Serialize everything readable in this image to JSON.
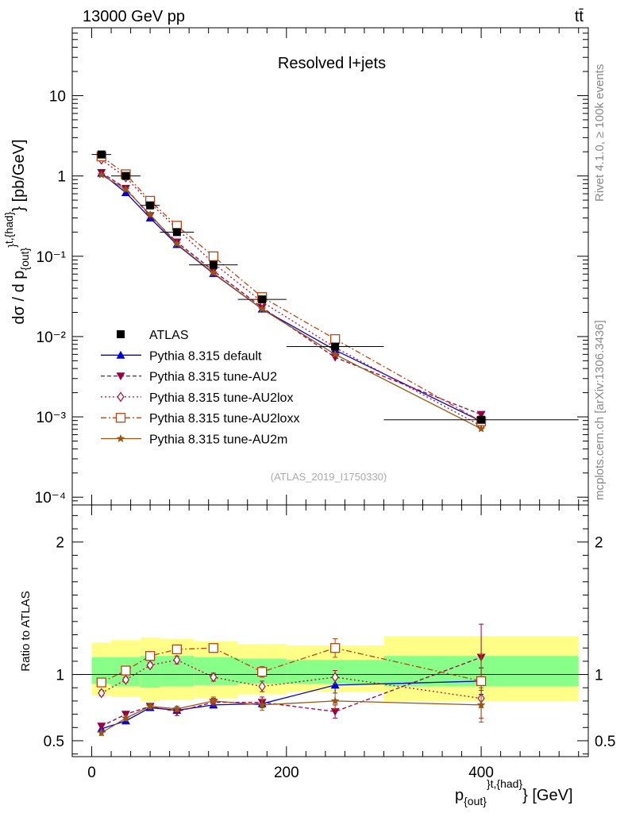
{
  "header": {
    "energy_label": "13000 GeV pp",
    "process_label": "tt̄"
  },
  "side_labels": {
    "rivet": "Rivet 4.1.0, ≥ 100k events",
    "mcplots": "mcplots.cern.ch [arXiv:1306.3436]"
  },
  "chart_data": [
    {
      "type": "scatter",
      "panel": "main",
      "title": "Resolved l+jets",
      "watermark": "(ATLAS_2019_I1750330)",
      "ylabel": "dσ / d p_{out}^{t,{had}} [pb/GeV]",
      "xlabel": "p_{out}^{t,{had}} [GeV]",
      "yscale": "log",
      "xlim": [
        -20,
        510
      ],
      "ylim": [
        8e-05,
        70
      ],
      "ytick_labels": [
        "10⁻⁴",
        "10⁻³",
        "10⁻²",
        "10⁻¹",
        "1",
        "10"
      ],
      "x": [
        10,
        35,
        60,
        87.5,
        125,
        175,
        250,
        400
      ],
      "data": {
        "name": "ATLAS",
        "x": [
          10,
          35,
          60,
          87.5,
          125,
          175,
          250,
          400
        ],
        "y": [
          1.85,
          1.0,
          0.43,
          0.2,
          0.078,
          0.029,
          0.0075,
          0.00092
        ],
        "xerr": [
          10,
          15,
          10,
          17.5,
          25,
          25,
          50,
          100
        ]
      },
      "series": [
        {
          "name": "Pythia 8.315 default",
          "color": "#0000dd",
          "dash": "",
          "marker": "triangle-up",
          "values": [
            1.08,
            0.62,
            0.3,
            0.14,
            0.061,
            0.022,
            0.0068,
            0.00088
          ]
        },
        {
          "name": "Pythia 8.315 tune-AU2",
          "color": "#990044",
          "dash": "5,3",
          "marker": "triangle-down",
          "values": [
            1.1,
            0.7,
            0.32,
            0.15,
            0.066,
            0.023,
            0.0055,
            0.00107
          ]
        },
        {
          "name": "Pythia 8.315 tune-AU2lox",
          "color": "#aa1133",
          "dash": "2,3",
          "marker": "diamond-open",
          "values": [
            1.6,
            0.96,
            0.46,
            0.22,
            0.082,
            0.027,
            0.0073,
            0.00077
          ]
        },
        {
          "name": "Pythia 8.315 tune-AU2loxx",
          "color": "#bb4411",
          "dash": "7,3,2,3",
          "marker": "square-open",
          "values": [
            1.75,
            1.05,
            0.49,
            0.24,
            0.1,
            0.031,
            0.0093,
            0.00088
          ]
        },
        {
          "name": "Pythia 8.315 tune-AU2m",
          "color": "#995511",
          "dash": "",
          "marker": "star",
          "values": [
            1.03,
            0.68,
            0.33,
            0.143,
            0.062,
            0.022,
            0.006,
            0.00071
          ]
        }
      ]
    },
    {
      "type": "line",
      "panel": "ratio",
      "ylabel": "Ratio to ATLAS",
      "xlabel": "p_{out}^{t,{had}} [GeV]",
      "xlim": [
        -20,
        510
      ],
      "ylim": [
        0.38,
        2.28
      ],
      "ytick_labels": [
        "0.5",
        "1",
        "2"
      ],
      "xtick_labels": [
        "0",
        "200",
        "400"
      ],
      "x": [
        10,
        35,
        60,
        87.5,
        125,
        175,
        250,
        400
      ],
      "bands": {
        "x_edges": [
          0,
          20,
          50,
          70,
          105,
          150,
          200,
          300,
          500
        ],
        "yellow_low": [
          0.84,
          0.83,
          0.8,
          0.81,
          0.82,
          0.85,
          0.87,
          0.8
        ],
        "yellow_high": [
          1.24,
          1.26,
          1.28,
          1.27,
          1.25,
          1.23,
          1.22,
          1.29
        ],
        "green_low": [
          0.93,
          0.91,
          0.9,
          0.91,
          0.92,
          0.93,
          0.93,
          0.91
        ],
        "green_high": [
          1.13,
          1.13,
          1.14,
          1.14,
          1.13,
          1.12,
          1.11,
          1.14
        ]
      },
      "series": [
        {
          "name": "Pythia 8.315 default",
          "values": [
            0.59,
            0.65,
            0.75,
            0.73,
            0.77,
            0.78,
            0.92,
            0.95
          ],
          "err": [
            0.02,
            0.02,
            0.02,
            0.02,
            0.02,
            0.03,
            0.06,
            0.1
          ]
        },
        {
          "name": "Pythia 8.315 tune-AU2",
          "values": [
            0.61,
            0.7,
            0.76,
            0.72,
            0.79,
            0.79,
            0.72,
            1.13
          ],
          "err": [
            0.02,
            0.02,
            0.02,
            0.03,
            0.03,
            0.04,
            0.05,
            0.25
          ]
        },
        {
          "name": "Pythia 8.315 tune-AU2lox",
          "values": [
            0.86,
            0.96,
            1.07,
            1.11,
            0.98,
            0.91,
            0.98,
            0.82
          ],
          "err": [
            0.02,
            0.02,
            0.02,
            0.03,
            0.03,
            0.04,
            0.05,
            0.15
          ]
        },
        {
          "name": "Pythia 8.315 tune-AU2loxx",
          "values": [
            0.94,
            1.03,
            1.14,
            1.19,
            1.2,
            1.02,
            1.2,
            0.95
          ],
          "err": [
            0.02,
            0.02,
            0.02,
            0.03,
            0.03,
            0.04,
            0.07,
            0.2
          ]
        },
        {
          "name": "Pythia 8.315 tune-AU2m",
          "values": [
            0.56,
            0.67,
            0.76,
            0.74,
            0.8,
            0.77,
            0.8,
            0.77
          ],
          "err": [
            0.02,
            0.02,
            0.02,
            0.02,
            0.03,
            0.04,
            0.06,
            0.13
          ]
        }
      ]
    }
  ]
}
